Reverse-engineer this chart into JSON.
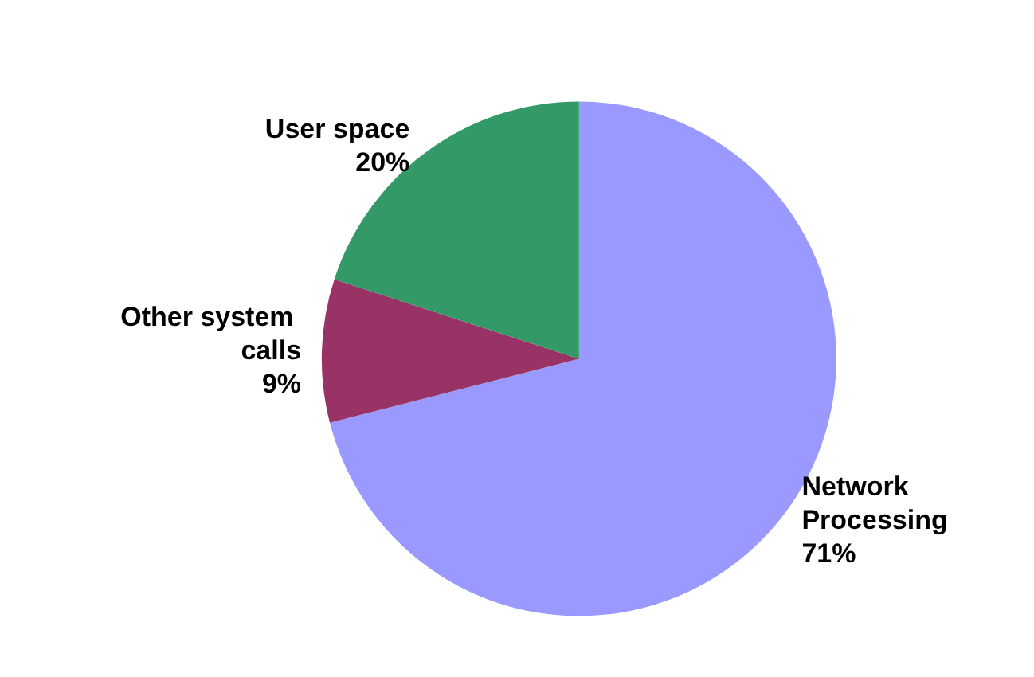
{
  "chart_data": {
    "type": "pie",
    "categories": [
      "Network Processing",
      "Other system calls",
      "User space"
    ],
    "values": [
      71,
      9,
      20
    ],
    "colors": [
      "#9999ff",
      "#993366",
      "#339966"
    ],
    "value_labels": [
      "71%",
      "9%",
      "20%"
    ]
  }
}
